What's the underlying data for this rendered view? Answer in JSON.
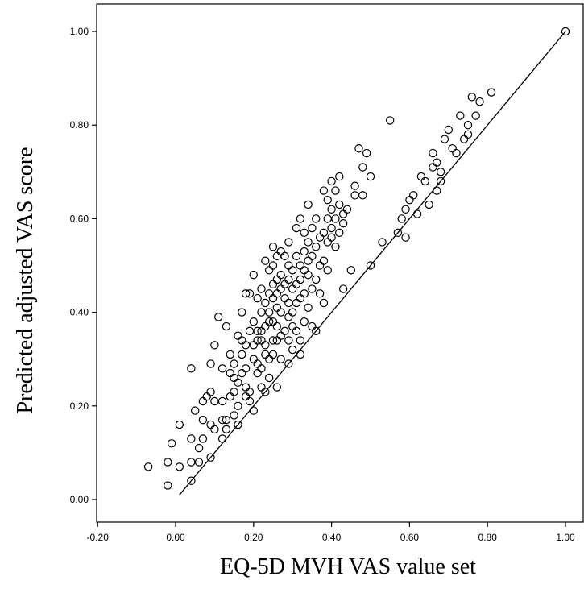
{
  "chart_data": {
    "type": "scatter",
    "xlabel": "EQ-5D MVH VAS value set",
    "ylabel": "Predicted adjusted VAS score",
    "xlim": [
      -0.2,
      1.0
    ],
    "ylim": [
      0.0,
      1.0
    ],
    "xticks": [
      "-0.20",
      "0.00",
      "0.20",
      "0.40",
      "0.60",
      "0.80",
      "1.00"
    ],
    "yticks": [
      "0.00",
      "0.20",
      "0.40",
      "0.60",
      "0.80",
      "1.00"
    ],
    "grid": false,
    "marker": "open-circle",
    "reference_line": {
      "from": [
        0.01,
        0.01
      ],
      "to": [
        1.0,
        1.0
      ]
    },
    "points": [
      [
        -0.07,
        0.07
      ],
      [
        -0.02,
        0.03
      ],
      [
        -0.02,
        0.08
      ],
      [
        -0.01,
        0.12
      ],
      [
        0.01,
        0.07
      ],
      [
        0.01,
        0.16
      ],
      [
        0.04,
        0.04
      ],
      [
        0.04,
        0.08
      ],
      [
        0.04,
        0.13
      ],
      [
        0.04,
        0.28
      ],
      [
        0.05,
        0.19
      ],
      [
        0.06,
        0.08
      ],
      [
        0.06,
        0.11
      ],
      [
        0.07,
        0.13
      ],
      [
        0.07,
        0.17
      ],
      [
        0.07,
        0.21
      ],
      [
        0.08,
        0.22
      ],
      [
        0.09,
        0.09
      ],
      [
        0.09,
        0.16
      ],
      [
        0.09,
        0.23
      ],
      [
        0.09,
        0.29
      ],
      [
        0.1,
        0.15
      ],
      [
        0.1,
        0.21
      ],
      [
        0.1,
        0.33
      ],
      [
        0.11,
        0.39
      ],
      [
        0.12,
        0.13
      ],
      [
        0.12,
        0.17
      ],
      [
        0.12,
        0.21
      ],
      [
        0.12,
        0.28
      ],
      [
        0.13,
        0.15
      ],
      [
        0.13,
        0.17
      ],
      [
        0.13,
        0.37
      ],
      [
        0.14,
        0.22
      ],
      [
        0.14,
        0.27
      ],
      [
        0.14,
        0.31
      ],
      [
        0.15,
        0.18
      ],
      [
        0.15,
        0.23
      ],
      [
        0.15,
        0.26
      ],
      [
        0.15,
        0.29
      ],
      [
        0.16,
        0.16
      ],
      [
        0.16,
        0.2
      ],
      [
        0.16,
        0.25
      ],
      [
        0.16,
        0.35
      ],
      [
        0.17,
        0.27
      ],
      [
        0.17,
        0.31
      ],
      [
        0.17,
        0.34
      ],
      [
        0.17,
        0.4
      ],
      [
        0.18,
        0.22
      ],
      [
        0.18,
        0.24
      ],
      [
        0.18,
        0.28
      ],
      [
        0.18,
        0.33
      ],
      [
        0.18,
        0.44
      ],
      [
        0.19,
        0.21
      ],
      [
        0.19,
        0.23
      ],
      [
        0.19,
        0.36
      ],
      [
        0.19,
        0.44
      ],
      [
        0.2,
        0.19
      ],
      [
        0.2,
        0.3
      ],
      [
        0.2,
        0.33
      ],
      [
        0.2,
        0.38
      ],
      [
        0.2,
        0.48
      ],
      [
        0.21,
        0.27
      ],
      [
        0.21,
        0.29
      ],
      [
        0.21,
        0.34
      ],
      [
        0.21,
        0.36
      ],
      [
        0.21,
        0.43
      ],
      [
        0.22,
        0.24
      ],
      [
        0.22,
        0.28
      ],
      [
        0.22,
        0.34
      ],
      [
        0.22,
        0.36
      ],
      [
        0.22,
        0.4
      ],
      [
        0.22,
        0.45
      ],
      [
        0.23,
        0.23
      ],
      [
        0.23,
        0.31
      ],
      [
        0.23,
        0.33
      ],
      [
        0.23,
        0.37
      ],
      [
        0.23,
        0.42
      ],
      [
        0.23,
        0.51
      ],
      [
        0.24,
        0.26
      ],
      [
        0.24,
        0.3
      ],
      [
        0.24,
        0.38
      ],
      [
        0.24,
        0.4
      ],
      [
        0.24,
        0.44
      ],
      [
        0.24,
        0.49
      ],
      [
        0.25,
        0.31
      ],
      [
        0.25,
        0.34
      ],
      [
        0.25,
        0.38
      ],
      [
        0.25,
        0.43
      ],
      [
        0.25,
        0.46
      ],
      [
        0.25,
        0.5
      ],
      [
        0.25,
        0.54
      ],
      [
        0.26,
        0.24
      ],
      [
        0.26,
        0.34
      ],
      [
        0.26,
        0.37
      ],
      [
        0.26,
        0.41
      ],
      [
        0.26,
        0.44
      ],
      [
        0.26,
        0.47
      ],
      [
        0.26,
        0.52
      ],
      [
        0.27,
        0.3
      ],
      [
        0.27,
        0.35
      ],
      [
        0.27,
        0.4
      ],
      [
        0.27,
        0.45
      ],
      [
        0.27,
        0.48
      ],
      [
        0.27,
        0.53
      ],
      [
        0.28,
        0.36
      ],
      [
        0.28,
        0.43
      ],
      [
        0.28,
        0.46
      ],
      [
        0.28,
        0.52
      ],
      [
        0.29,
        0.29
      ],
      [
        0.29,
        0.34
      ],
      [
        0.29,
        0.39
      ],
      [
        0.29,
        0.42
      ],
      [
        0.29,
        0.47
      ],
      [
        0.29,
        0.5
      ],
      [
        0.29,
        0.55
      ],
      [
        0.3,
        0.32
      ],
      [
        0.3,
        0.37
      ],
      [
        0.3,
        0.4
      ],
      [
        0.3,
        0.45
      ],
      [
        0.3,
        0.49
      ],
      [
        0.31,
        0.36
      ],
      [
        0.31,
        0.42
      ],
      [
        0.31,
        0.46
      ],
      [
        0.31,
        0.52
      ],
      [
        0.31,
        0.58
      ],
      [
        0.32,
        0.31
      ],
      [
        0.32,
        0.34
      ],
      [
        0.32,
        0.43
      ],
      [
        0.32,
        0.47
      ],
      [
        0.32,
        0.5
      ],
      [
        0.32,
        0.6
      ],
      [
        0.33,
        0.38
      ],
      [
        0.33,
        0.44
      ],
      [
        0.33,
        0.49
      ],
      [
        0.33,
        0.53
      ],
      [
        0.33,
        0.57
      ],
      [
        0.34,
        0.41
      ],
      [
        0.34,
        0.48
      ],
      [
        0.34,
        0.51
      ],
      [
        0.34,
        0.55
      ],
      [
        0.34,
        0.63
      ],
      [
        0.35,
        0.37
      ],
      [
        0.35,
        0.45
      ],
      [
        0.35,
        0.52
      ],
      [
        0.35,
        0.58
      ],
      [
        0.36,
        0.36
      ],
      [
        0.36,
        0.47
      ],
      [
        0.36,
        0.54
      ],
      [
        0.36,
        0.6
      ],
      [
        0.37,
        0.44
      ],
      [
        0.37,
        0.5
      ],
      [
        0.37,
        0.56
      ],
      [
        0.38,
        0.42
      ],
      [
        0.38,
        0.51
      ],
      [
        0.38,
        0.57
      ],
      [
        0.38,
        0.66
      ],
      [
        0.39,
        0.49
      ],
      [
        0.39,
        0.55
      ],
      [
        0.39,
        0.6
      ],
      [
        0.39,
        0.64
      ],
      [
        0.4,
        0.56
      ],
      [
        0.4,
        0.58
      ],
      [
        0.4,
        0.62
      ],
      [
        0.4,
        0.68
      ],
      [
        0.41,
        0.54
      ],
      [
        0.41,
        0.6
      ],
      [
        0.41,
        0.66
      ],
      [
        0.42,
        0.57
      ],
      [
        0.42,
        0.63
      ],
      [
        0.42,
        0.69
      ],
      [
        0.43,
        0.45
      ],
      [
        0.43,
        0.59
      ],
      [
        0.43,
        0.61
      ],
      [
        0.44,
        0.62
      ],
      [
        0.45,
        0.49
      ],
      [
        0.46,
        0.65
      ],
      [
        0.46,
        0.67
      ],
      [
        0.47,
        0.75
      ],
      [
        0.48,
        0.65
      ],
      [
        0.48,
        0.71
      ],
      [
        0.49,
        0.74
      ],
      [
        0.5,
        0.5
      ],
      [
        0.5,
        0.69
      ],
      [
        0.53,
        0.55
      ],
      [
        0.55,
        0.81
      ],
      [
        0.57,
        0.57
      ],
      [
        0.58,
        0.6
      ],
      [
        0.59,
        0.56
      ],
      [
        0.59,
        0.62
      ],
      [
        0.6,
        0.64
      ],
      [
        0.61,
        0.65
      ],
      [
        0.62,
        0.61
      ],
      [
        0.63,
        0.69
      ],
      [
        0.64,
        0.68
      ],
      [
        0.65,
        0.63
      ],
      [
        0.66,
        0.71
      ],
      [
        0.66,
        0.74
      ],
      [
        0.67,
        0.66
      ],
      [
        0.67,
        0.72
      ],
      [
        0.68,
        0.68
      ],
      [
        0.68,
        0.7
      ],
      [
        0.69,
        0.77
      ],
      [
        0.7,
        0.79
      ],
      [
        0.71,
        0.75
      ],
      [
        0.72,
        0.74
      ],
      [
        0.73,
        0.82
      ],
      [
        0.74,
        0.77
      ],
      [
        0.75,
        0.8
      ],
      [
        0.75,
        0.78
      ],
      [
        0.76,
        0.86
      ],
      [
        0.77,
        0.82
      ],
      [
        0.78,
        0.85
      ],
      [
        0.81,
        0.87
      ],
      [
        1.0,
        1.0
      ]
    ]
  }
}
